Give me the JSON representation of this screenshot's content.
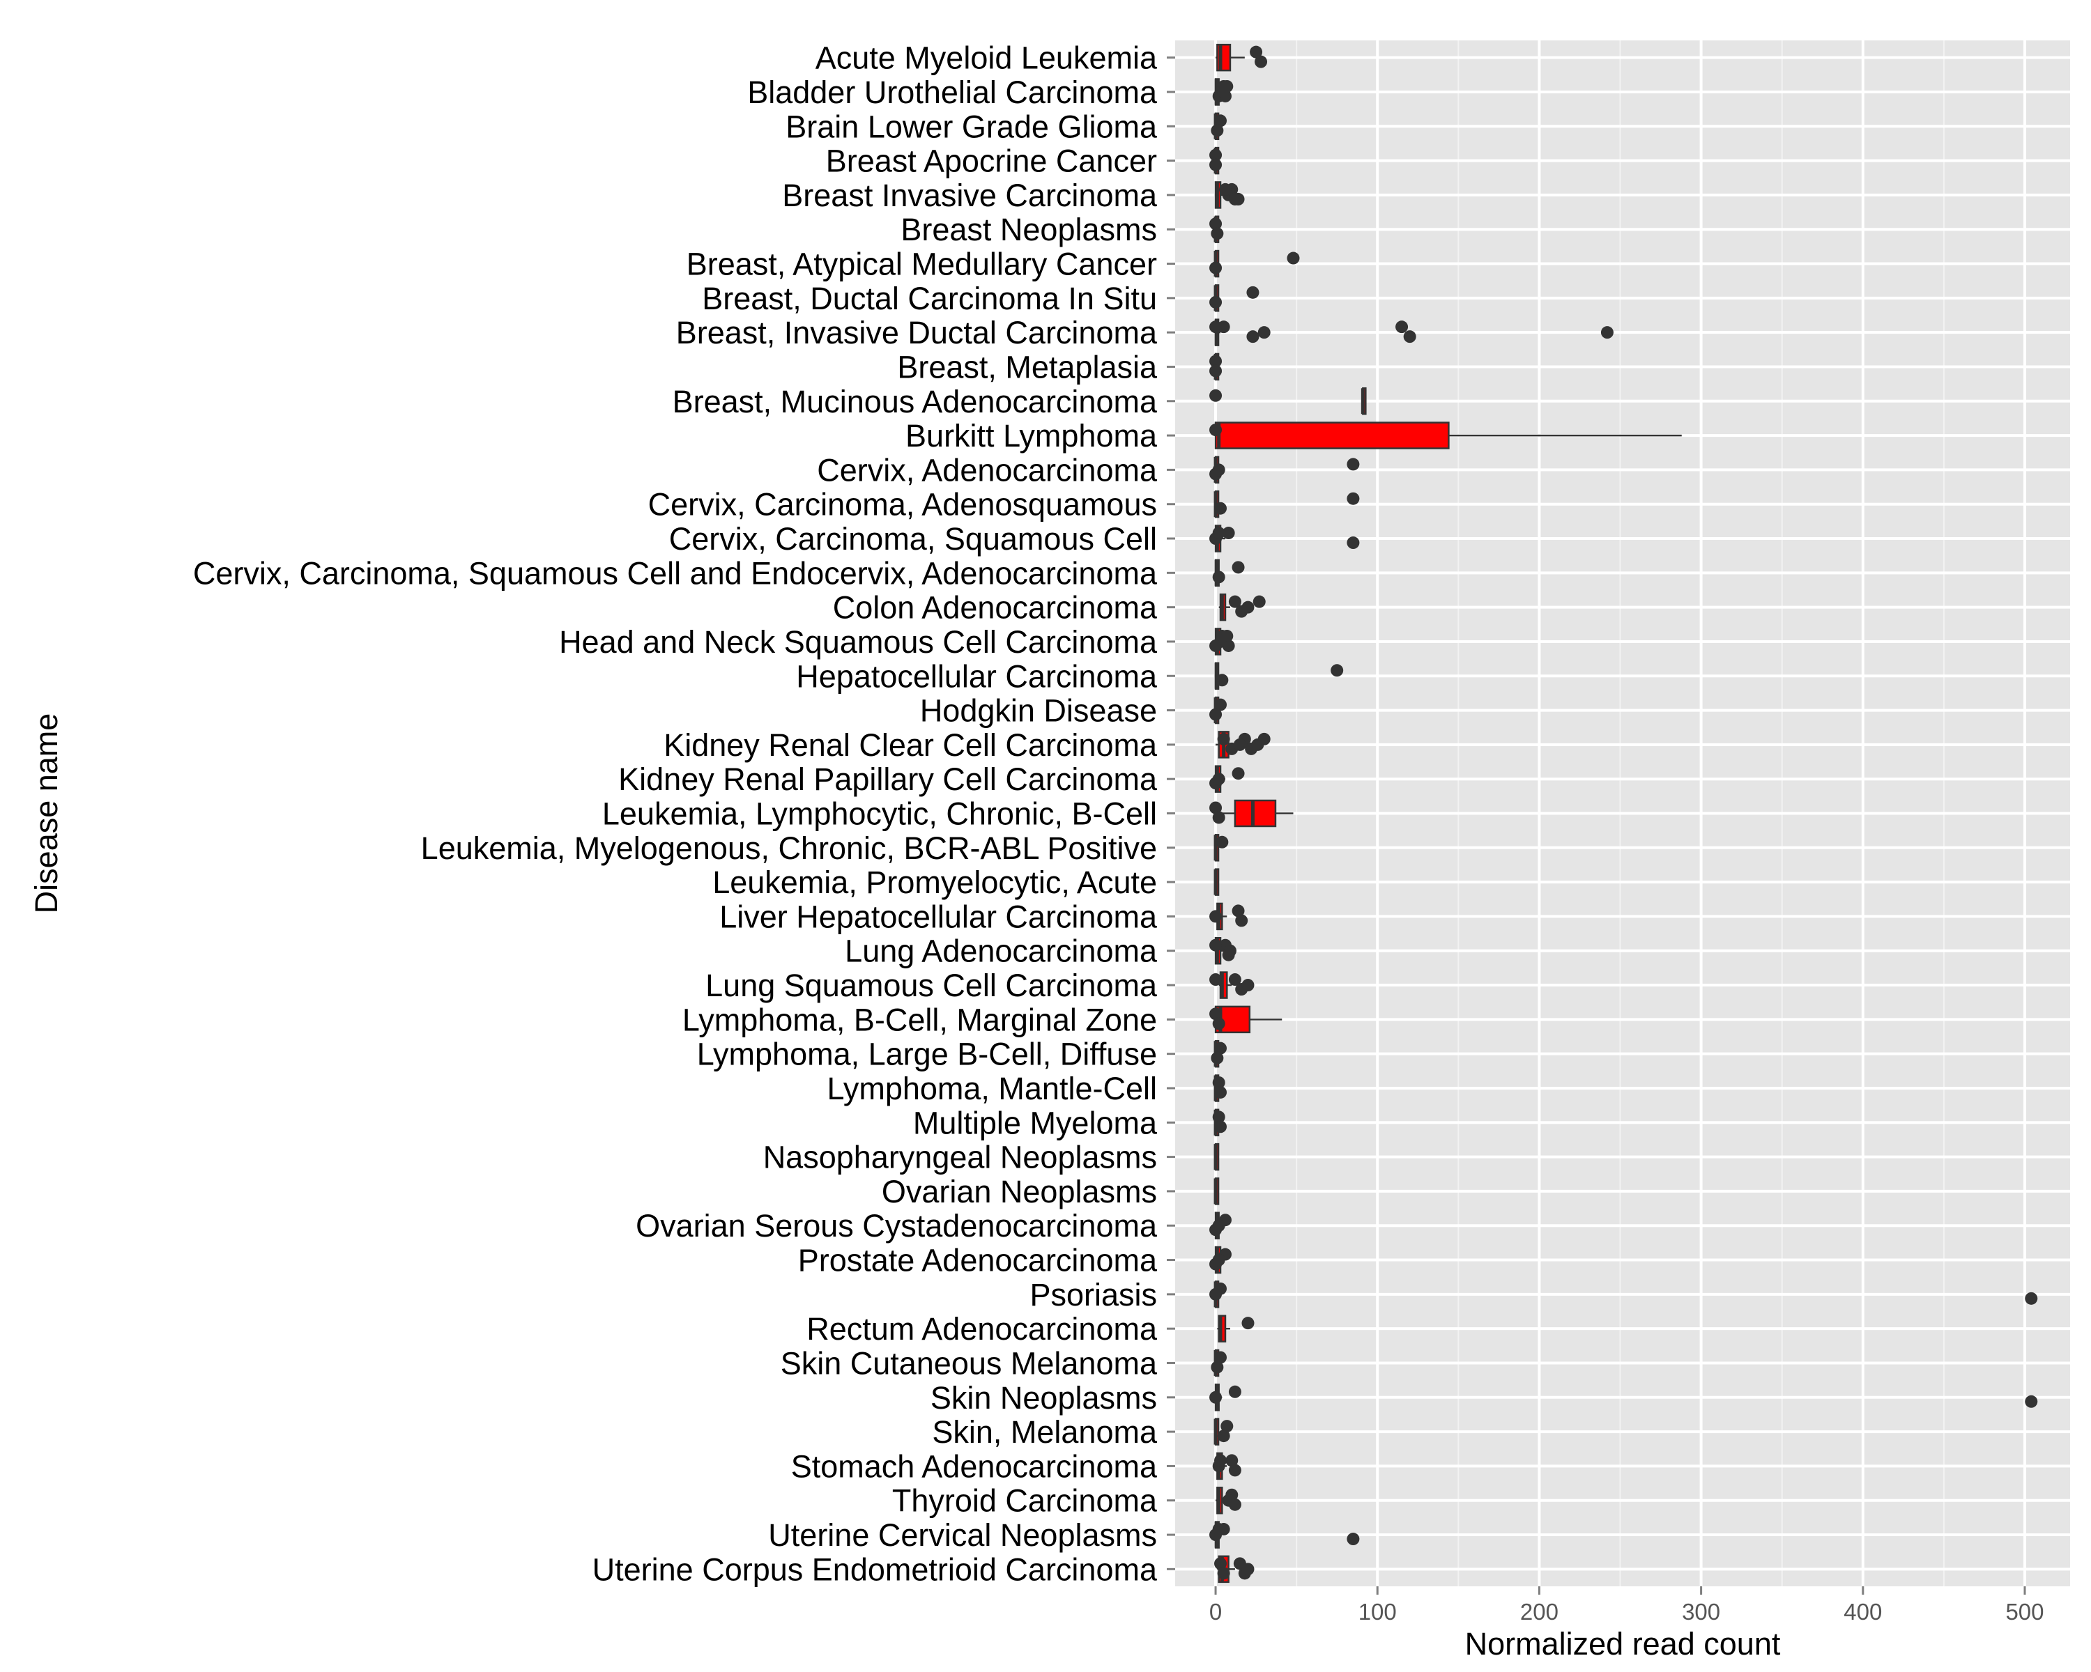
{
  "chart_data": {
    "type": "boxplot",
    "orientation": "horizontal",
    "xlabel": "Normalized read count",
    "ylabel": "Disease name",
    "xlim": [
      -25,
      528
    ],
    "x_ticks": [
      0,
      100,
      200,
      300,
      400,
      500
    ],
    "grid": true,
    "legend": "none",
    "colors": {
      "box_fill": "#ff0000",
      "panel_bg": "#e5e5e5",
      "grid": "#ffffff",
      "point": "#333333"
    },
    "categories": [
      "Acute Myeloid Leukemia",
      "Bladder Urothelial Carcinoma",
      "Brain Lower Grade Glioma",
      "Breast Apocrine Cancer",
      "Breast Invasive Carcinoma",
      "Breast Neoplasms",
      "Breast, Atypical Medullary Cancer",
      "Breast, Ductal Carcinoma In Situ",
      "Breast, Invasive Ductal Carcinoma",
      "Breast, Metaplasia",
      "Breast, Mucinous Adenocarcinoma",
      "Burkitt Lymphoma",
      "Cervix, Adenocarcinoma",
      "Cervix, Carcinoma, Adenosquamous",
      "Cervix, Carcinoma, Squamous Cell",
      "Cervix, Carcinoma, Squamous Cell and Endocervix, Adenocarcinoma",
      "Colon Adenocarcinoma",
      "Head and Neck Squamous Cell Carcinoma",
      "Hepatocellular Carcinoma",
      "Hodgkin Disease",
      "Kidney Renal Clear Cell Carcinoma",
      "Kidney Renal Papillary Cell Carcinoma",
      "Leukemia, Lymphocytic, Chronic, B-Cell",
      "Leukemia, Myelogenous, Chronic, BCR-ABL Positive",
      "Leukemia, Promyelocytic, Acute",
      "Liver Hepatocellular Carcinoma",
      "Lung Adenocarcinoma",
      "Lung Squamous Cell Carcinoma",
      "Lymphoma, B-Cell, Marginal Zone",
      "Lymphoma, Large B-Cell, Diffuse",
      "Lymphoma, Mantle-Cell",
      "Multiple Myeloma",
      "Nasopharyngeal Neoplasms",
      "Ovarian Neoplasms",
      "Ovarian Serous Cystadenocarcinoma",
      "Prostate Adenocarcinoma",
      "Psoriasis",
      "Rectum Adenocarcinoma",
      "Skin Cutaneous Melanoma",
      "Skin Neoplasms",
      "Skin, Melanoma",
      "Stomach Adenocarcinoma",
      "Thyroid Carcinoma",
      "Uterine Cervical Neoplasms",
      "Uterine Corpus Endometrioid Carcinoma"
    ],
    "boxes": [
      {
        "min": 0,
        "q1": 1,
        "median": 3,
        "q3": 9,
        "max": 18,
        "outliers": [
          25,
          28
        ]
      },
      {
        "min": 0,
        "q1": 0,
        "median": 0.5,
        "q3": 2,
        "max": 4,
        "outliers": [
          5,
          6,
          4,
          7,
          2,
          5
        ]
      },
      {
        "min": 0,
        "q1": 0,
        "median": 0,
        "q3": 1,
        "max": 2,
        "outliers": [
          3,
          1
        ]
      },
      {
        "min": 0,
        "q1": 0,
        "median": 0,
        "q3": 0.5,
        "max": 1,
        "outliers": [
          0,
          0
        ]
      },
      {
        "min": 0,
        "q1": 0,
        "median": 1,
        "q3": 3,
        "max": 6,
        "outliers": [
          10,
          14,
          8,
          6,
          12
        ]
      },
      {
        "min": 0,
        "q1": 0,
        "median": 0,
        "q3": 0.5,
        "max": 1,
        "outliers": [
          0,
          1
        ]
      },
      {
        "min": 0,
        "q1": 0,
        "median": 0,
        "q3": 0.5,
        "max": 1,
        "outliers": [
          48,
          0
        ]
      },
      {
        "min": 0,
        "q1": 0,
        "median": 0,
        "q3": 0.5,
        "max": 1,
        "outliers": [
          23,
          0
        ]
      },
      {
        "min": 0,
        "q1": 0,
        "median": 0.5,
        "q3": 1.5,
        "max": 3,
        "outliers": [
          5,
          23,
          30,
          115,
          120,
          242,
          0
        ]
      },
      {
        "min": 0,
        "q1": 0,
        "median": 0,
        "q3": 0.5,
        "max": 1,
        "outliers": [
          0,
          0
        ]
      },
      {
        "min": 91,
        "q1": 91,
        "median": 91,
        "q3": 91,
        "max": 91,
        "outliers": [
          0
        ]
      },
      {
        "min": 0,
        "q1": 0,
        "median": 2,
        "q3": 144,
        "max": 288,
        "outliers": [
          0
        ]
      },
      {
        "min": 0,
        "q1": 0,
        "median": 0,
        "q3": 1,
        "max": 2,
        "outliers": [
          85,
          0,
          2
        ]
      },
      {
        "min": 0,
        "q1": 0,
        "median": 0,
        "q3": 1,
        "max": 2,
        "outliers": [
          85,
          3
        ]
      },
      {
        "min": 0,
        "q1": 0,
        "median": 1,
        "q3": 3,
        "max": 6,
        "outliers": [
          8,
          85,
          0,
          2
        ]
      },
      {
        "min": 0,
        "q1": 0,
        "median": 0.5,
        "q3": 2,
        "max": 4,
        "outliers": [
          14,
          2
        ]
      },
      {
        "min": 2,
        "q1": 3,
        "median": 4,
        "q3": 6,
        "max": 9,
        "outliers": [
          12,
          16,
          20,
          27
        ]
      },
      {
        "min": 0,
        "q1": 0,
        "median": 1,
        "q3": 3,
        "max": 5,
        "outliers": [
          7,
          8,
          3,
          4,
          0
        ]
      },
      {
        "min": 0,
        "q1": 0,
        "median": 0.5,
        "q3": 1.5,
        "max": 3,
        "outliers": [
          75,
          4
        ]
      },
      {
        "min": 0,
        "q1": 0,
        "median": 0,
        "q3": 1,
        "max": 2,
        "outliers": [
          3,
          0
        ]
      },
      {
        "min": 0,
        "q1": 2,
        "median": 5,
        "q3": 8,
        "max": 14,
        "outliers": [
          18,
          22,
          26,
          30,
          10,
          15,
          5
        ]
      },
      {
        "min": 0,
        "q1": 0,
        "median": 1,
        "q3": 3,
        "max": 6,
        "outliers": [
          14,
          0,
          2
        ]
      },
      {
        "min": 0,
        "q1": 12,
        "median": 23,
        "q3": 37,
        "max": 48,
        "outliers": [
          0,
          2
        ]
      },
      {
        "min": 0,
        "q1": 0,
        "median": 0,
        "q3": 0.5,
        "max": 1,
        "outliers": [
          4
        ]
      },
      {
        "min": 0,
        "q1": 0,
        "median": 0,
        "q3": 0.5,
        "max": 1,
        "outliers": []
      },
      {
        "min": 0,
        "q1": 1,
        "median": 2,
        "q3": 4,
        "max": 7,
        "outliers": [
          14,
          16,
          0
        ]
      },
      {
        "min": 0,
        "q1": 0,
        "median": 1,
        "q3": 3,
        "max": 5,
        "outliers": [
          6,
          8,
          9,
          0
        ]
      },
      {
        "min": 2,
        "q1": 3,
        "median": 4,
        "q3": 7,
        "max": 10,
        "outliers": [
          12,
          16,
          20,
          0
        ]
      },
      {
        "min": 0,
        "q1": 0,
        "median": 3,
        "q3": 21,
        "max": 41,
        "outliers": [
          0,
          2
        ]
      },
      {
        "min": 0,
        "q1": 0,
        "median": 0,
        "q3": 1,
        "max": 2,
        "outliers": [
          3,
          1
        ]
      },
      {
        "min": 0,
        "q1": 0,
        "median": 0,
        "q3": 1,
        "max": 2,
        "outliers": [
          2,
          3
        ]
      },
      {
        "min": 0,
        "q1": 0,
        "median": 0,
        "q3": 1,
        "max": 2,
        "outliers": [
          2,
          3
        ]
      },
      {
        "min": 0,
        "q1": 0,
        "median": 0,
        "q3": 0.5,
        "max": 1,
        "outliers": []
      },
      {
        "min": 0,
        "q1": 0,
        "median": 0,
        "q3": 0.5,
        "max": 1,
        "outliers": []
      },
      {
        "min": 0,
        "q1": 0,
        "median": 1,
        "q3": 2,
        "max": 4,
        "outliers": [
          6,
          0,
          2
        ]
      },
      {
        "min": 0,
        "q1": 0,
        "median": 1,
        "q3": 3,
        "max": 5,
        "outliers": [
          6,
          0,
          2
        ]
      },
      {
        "min": 0,
        "q1": 0,
        "median": 0,
        "q3": 1,
        "max": 2,
        "outliers": [
          3,
          504,
          0
        ]
      },
      {
        "min": 1,
        "q1": 2,
        "median": 3,
        "q3": 6,
        "max": 9,
        "outliers": [
          20
        ]
      },
      {
        "min": 0,
        "q1": 0,
        "median": 0,
        "q3": 1,
        "max": 2,
        "outliers": [
          3,
          1
        ]
      },
      {
        "min": 0,
        "q1": 0,
        "median": 1,
        "q3": 2,
        "max": 4,
        "outliers": [
          12,
          504,
          0
        ]
      },
      {
        "min": 0,
        "q1": 0,
        "median": 0,
        "q3": 0.5,
        "max": 1,
        "outliers": [
          7,
          5
        ]
      },
      {
        "min": 0,
        "q1": 1,
        "median": 2,
        "q3": 4,
        "max": 7,
        "outliers": [
          10,
          12,
          2,
          3
        ]
      },
      {
        "min": 0,
        "q1": 1,
        "median": 2,
        "q3": 4,
        "max": 7,
        "outliers": [
          10,
          12,
          8
        ]
      },
      {
        "min": 0,
        "q1": 0,
        "median": 0.5,
        "q3": 2,
        "max": 3,
        "outliers": [
          5,
          85,
          0,
          2
        ]
      },
      {
        "min": 1,
        "q1": 2,
        "median": 4,
        "q3": 8,
        "max": 12,
        "outliers": [
          15,
          18,
          20,
          3,
          5
        ]
      }
    ]
  }
}
